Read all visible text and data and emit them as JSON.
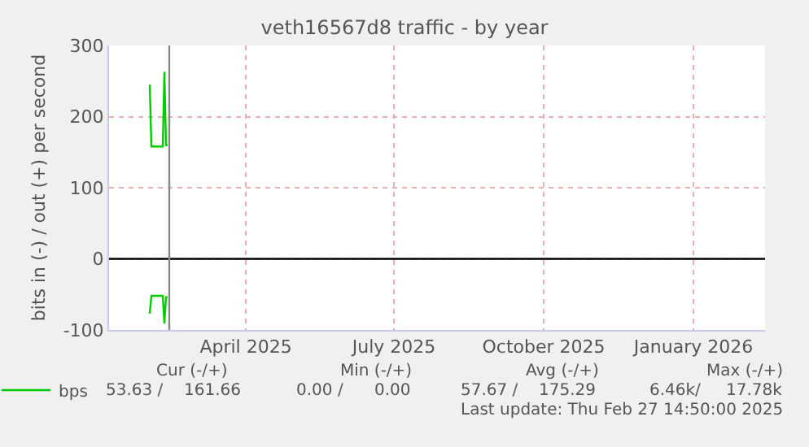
{
  "chart_data": {
    "type": "line",
    "title": "veth16567d8 traffic - by year",
    "ylabel": "bits in (-) / out (+) per second",
    "x": [
      "2025-02-15",
      "2025-02-16",
      "2025-02-23",
      "2025-02-24",
      "2025-02-25",
      "2025-02-26"
    ],
    "series": [
      {
        "name": "bps",
        "color": "#00cc00",
        "values": [
          245,
          158,
          158,
          263,
          160,
          160
        ]
      },
      {
        "color": "#00cc00",
        "values": [
          -77,
          -52,
          -52,
          -91,
          -54,
          -54
        ]
      }
    ],
    "xlim": [
      "2025-01-21",
      "2026-02-28"
    ],
    "xticks": [
      {
        "value": "2025-04-15",
        "label": "April 2025"
      },
      {
        "value": "2025-07-15",
        "label": "July 2025"
      },
      {
        "value": "2025-10-15",
        "label": "October 2025"
      },
      {
        "value": "2026-01-15",
        "label": "January 2026"
      }
    ],
    "ylim": [
      -100,
      300
    ],
    "yticks": [
      -100,
      0,
      100,
      200,
      300
    ],
    "ref_lines": [
      {
        "axis": "y",
        "value": 0,
        "color": "#000000"
      },
      {
        "axis": "x",
        "value": "2025-02-27",
        "color": "#888888"
      }
    ],
    "grid": true,
    "legend": "bottom left",
    "marker": "none",
    "line_style": "solid",
    "annotations": [
      "Cur (-/+)",
      "Min (-/+)",
      "Avg (-/+)",
      "Max (-/+)",
      "53.63 /",
      "161.66",
      "0.00 /",
      "0.00",
      "57.67 /",
      "175.29",
      "6.46k/",
      "17.78k",
      "Last update: Thu Feb 27 14:50:00 2025"
    ]
  }
}
